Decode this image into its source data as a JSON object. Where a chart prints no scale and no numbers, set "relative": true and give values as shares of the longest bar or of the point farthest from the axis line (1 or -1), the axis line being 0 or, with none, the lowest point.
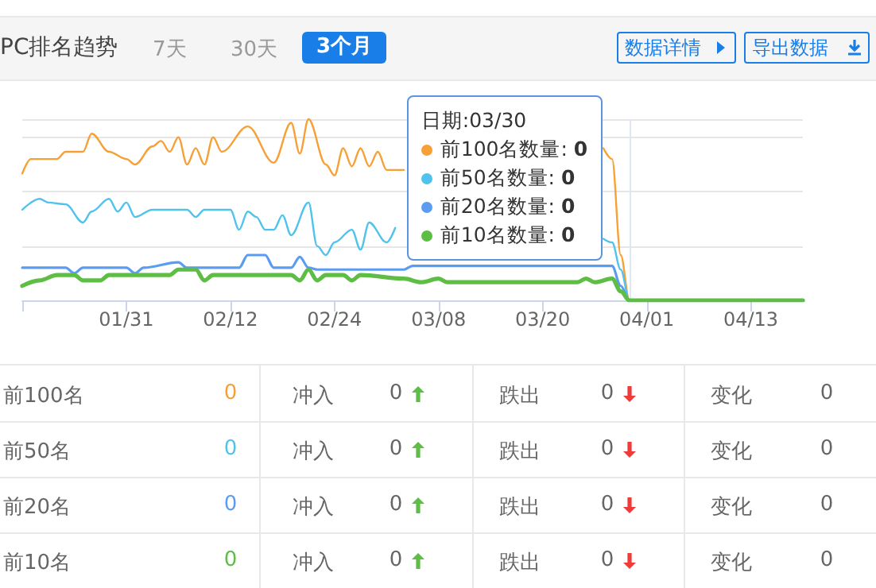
{
  "chart_data": {
    "type": "line",
    "title": "PC排名趋势",
    "relative": true,
    "grid": "y",
    "legend": "top right",
    "marker": "none",
    "line_style": "solid",
    "xlim": [
      "--01-19",
      "--04-19"
    ],
    "xticks": [
      {
        "value": "--01-19",
        "label": null
      },
      {
        "value": "--01-31",
        "label": "01/31"
      },
      {
        "value": "--02-12",
        "label": "02/12"
      },
      {
        "value": "--02-24",
        "label": "02/24"
      },
      {
        "value": "--03-08",
        "label": "03/08"
      },
      {
        "value": "--03-20",
        "label": "03/20"
      },
      {
        "value": "--04-01",
        "label": "04/01"
      },
      {
        "value": "--04-13",
        "label": "04/13"
      }
    ],
    "ref_lines": [
      {
        "axis": "x",
        "value": "--03-30",
        "color": "#dfe7f3"
      }
    ],
    "series": [
      {
        "name": "前100名数量:",
        "color": "#f7a035",
        "x": [
          "--01-19",
          "--01-20",
          "--01-23",
          "--01-24",
          "--01-26",
          "--01-27",
          "--01-29",
          "--01-31",
          "--02-01",
          "--02-03",
          "--02-04",
          "--02-05",
          "--02-06",
          "--02-07",
          "--02-08",
          "--02-09",
          "--02-10",
          "--02-11",
          "--02-14",
          "--02-17",
          "--02-19",
          "--02-20",
          "--02-21",
          "--02-23",
          "--02-24",
          "--02-25",
          "--02-26",
          "--02-27",
          "--02-28",
          "--03-01",
          "--03-02",
          "--03-04",
          "--03-05",
          "--03-06",
          "--03-26",
          "--03-27",
          "--03-28",
          "--03-29",
          "--03-30",
          "--04-19"
        ],
        "values": [
          0.7,
          0.78,
          0.78,
          0.82,
          0.82,
          0.92,
          0.82,
          0.78,
          0.75,
          0.85,
          0.88,
          0.82,
          0.9,
          0.75,
          0.84,
          0.75,
          0.9,
          0.82,
          0.96,
          0.76,
          0.98,
          0.81,
          1,
          0.75,
          0.69,
          0.84,
          0.74,
          0.84,
          0.74,
          0.82,
          0.72,
          0.72,
          null,
          null,
          null,
          0.84,
          0.78,
          0.25,
          0,
          0
        ]
      },
      {
        "name": "前50名数量:",
        "color": "#4fc3ec",
        "x": [
          "--01-19",
          "--01-21",
          "--01-22",
          "--01-24",
          "--01-26",
          "--01-27",
          "--01-29",
          "--01-30",
          "--01-31",
          "--02-01",
          "--02-03",
          "--02-07",
          "--02-08",
          "--02-09",
          "--02-12",
          "--02-13",
          "--02-14",
          "--02-15",
          "--02-16",
          "--02-17",
          "--02-18",
          "--02-19",
          "--02-21",
          "--02-22",
          "--02-23",
          "--02-24",
          "--02-26",
          "--02-27",
          "--02-28",
          "--03-02",
          "--03-03",
          "--03-05",
          "--03-06",
          "--03-07",
          "--03-27",
          "--03-28",
          "--03-29",
          "--03-30",
          "--04-19"
        ],
        "values": [
          0.5,
          0.56,
          0.54,
          0.53,
          0.43,
          0.49,
          0.56,
          0.49,
          0.54,
          0.46,
          0.5,
          0.5,
          0.46,
          0.5,
          0.5,
          0.39,
          0.49,
          0.46,
          0.39,
          0.39,
          0.47,
          0.36,
          0.54,
          0.3,
          0.25,
          0.32,
          0.39,
          0.28,
          0.43,
          0.32,
          0.4,
          null,
          null,
          null,
          0.34,
          0.32,
          0.17,
          0,
          0
        ]
      },
      {
        "name": "前20名数量:",
        "color": "#5b9cf0",
        "x": [
          "--01-19",
          "--01-24",
          "--01-25",
          "--01-26",
          "--01-31",
          "--02-01",
          "--02-02",
          "--02-06",
          "--02-07",
          "--02-13",
          "--02-14",
          "--02-16",
          "--02-17",
          "--02-19",
          "--02-20",
          "--02-21",
          "--02-22",
          "--03-04",
          "--03-05",
          "--03-28",
          "--03-29",
          "--03-30",
          "--04-19"
        ],
        "values": [
          0.18,
          0.18,
          0.15,
          0.18,
          0.18,
          0.15,
          0.18,
          0.21,
          0.18,
          0.18,
          0.25,
          0.25,
          0.18,
          0.18,
          0.24,
          0.18,
          0.17,
          0.17,
          0.19,
          0.19,
          0.08,
          0,
          0
        ]
      },
      {
        "name": "前10名数量:",
        "color": "#5dbd45",
        "x": [
          "--01-19",
          "--01-21",
          "--01-23",
          "--01-25",
          "--01-26",
          "--01-28",
          "--01-29",
          "--02-05",
          "--02-06",
          "--02-08",
          "--02-09",
          "--02-10",
          "--02-19",
          "--02-20",
          "--02-21",
          "--02-22",
          "--02-23",
          "--02-25",
          "--02-26",
          "--02-27",
          "--03-04",
          "--03-06",
          "--03-08",
          "--03-09",
          "--03-24",
          "--03-25",
          "--03-26",
          "--03-28",
          "--03-29",
          "--03-30",
          "--04-19"
        ],
        "values": [
          0.08,
          0.11,
          0.14,
          0.14,
          0.11,
          0.11,
          0.14,
          0.14,
          0.17,
          0.17,
          0.11,
          0.14,
          0.14,
          0.11,
          0.17,
          0.11,
          0.14,
          0.14,
          0.11,
          0.14,
          0.12,
          0.1,
          0.12,
          0.1,
          0.1,
          0.12,
          0.1,
          0.12,
          0.05,
          0,
          0
        ]
      }
    ],
    "annotations": [
      "7天",
      "30天",
      "3个月",
      "数据详情",
      "导出数据",
      "日期:03/30",
      "前100名",
      "0",
      "冲入",
      "0",
      "跌出",
      "0",
      "变化",
      "0",
      "前50名",
      "0",
      "冲入",
      "0",
      "跌出",
      "0",
      "变化",
      "0",
      "前20名",
      "0",
      "冲入",
      "0",
      "跌出",
      "0",
      "变化",
      "0",
      "前10名",
      "0",
      "冲入",
      "0",
      "跌出",
      "0",
      "变化",
      "0"
    ]
  }
}
